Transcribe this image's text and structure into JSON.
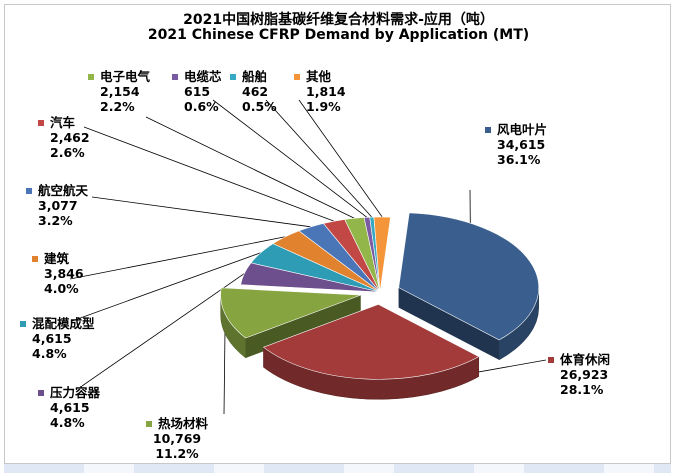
{
  "chart_data": {
    "type": "pie",
    "title": "2021中国树脂基碳纤维复合材料需求-应用（吨）",
    "subtitle": "2021 Chinese CFRP Demand by Application (MT)",
    "unit": "MT",
    "slices": [
      {
        "label": "风电叶片",
        "value": 34615,
        "value_text": "34,615",
        "percent": "36.1%",
        "color": "#3a5f8f",
        "exploded": true
      },
      {
        "label": "体育休闲",
        "value": 26923,
        "value_text": "26,923",
        "percent": "28.1%",
        "color": "#a33b3b",
        "exploded": true
      },
      {
        "label": "热场材料",
        "value": 10769,
        "value_text": "10,769",
        "percent": "11.2%",
        "color": "#86a440",
        "exploded": true
      },
      {
        "label": "压力容器",
        "value": 4615,
        "value_text": "4,615",
        "percent": "4.8%",
        "color": "#6d4f8e",
        "exploded": false
      },
      {
        "label": "混配模成型",
        "value": 4615,
        "value_text": "4,615",
        "percent": "4.8%",
        "color": "#2f9cb5",
        "exploded": false
      },
      {
        "label": "建筑",
        "value": 3846,
        "value_text": "3,846",
        "percent": "4.0%",
        "color": "#e1822f",
        "exploded": false
      },
      {
        "label": "航空航天",
        "value": 3077,
        "value_text": "3,077",
        "percent": "3.2%",
        "color": "#4a76b8",
        "exploded": false
      },
      {
        "label": "汽车",
        "value": 2462,
        "value_text": "2,462",
        "percent": "2.6%",
        "color": "#c24845",
        "exploded": false
      },
      {
        "label": "电子电气",
        "value": 2154,
        "value_text": "2,154",
        "percent": "2.2%",
        "color": "#93b64b",
        "exploded": false
      },
      {
        "label": "电缆芯",
        "value": 615,
        "value_text": "615",
        "percent": "0.6%",
        "color": "#7a5ba3",
        "exploded": false
      },
      {
        "label": "船舶",
        "value": 462,
        "value_text": "462",
        "percent": "0.5%",
        "color": "#35a9c4",
        "exploded": false
      },
      {
        "label": "其他",
        "value": 1814,
        "value_text": "1,814",
        "percent": "1.9%",
        "color": "#f4953a",
        "exploded": false
      }
    ]
  }
}
